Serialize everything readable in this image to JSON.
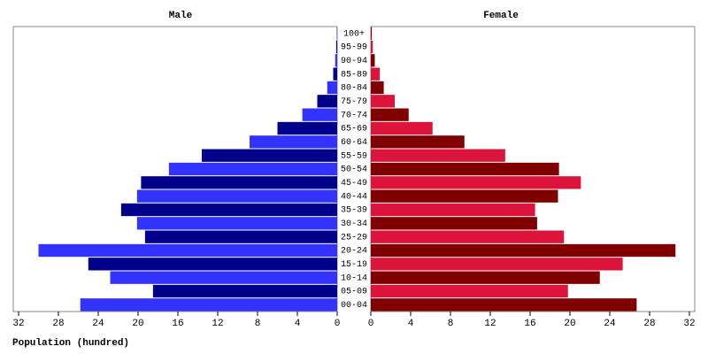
{
  "chart_data": {
    "type": "pyramid",
    "xlabel": "Population (hundred)",
    "categories": [
      "00-04",
      "05-09",
      "10-14",
      "15-19",
      "20-24",
      "25-29",
      "30-34",
      "35-39",
      "40-44",
      "45-49",
      "50-54",
      "55-59",
      "60-64",
      "65-69",
      "70-74",
      "75-79",
      "80-84",
      "85-89",
      "90-94",
      "95-99",
      "100+"
    ],
    "series": [
      {
        "name": "Male",
        "colors": [
          "#3333ff",
          "#00008b"
        ],
        "values": [
          25.8,
          18.5,
          22.8,
          25.0,
          30.0,
          19.3,
          20.1,
          21.7,
          20.1,
          19.7,
          16.9,
          13.6,
          8.8,
          6.0,
          3.5,
          2.0,
          1.0,
          0.4,
          0.2,
          0.1,
          0.05
        ]
      },
      {
        "name": "Female",
        "colors": [
          "#800000",
          "#dc143c"
        ],
        "values": [
          26.7,
          19.8,
          23.0,
          25.3,
          30.6,
          19.4,
          16.7,
          16.5,
          18.8,
          21.1,
          18.9,
          13.5,
          9.4,
          6.2,
          3.8,
          2.4,
          1.3,
          0.9,
          0.4,
          0.2,
          0.1
        ]
      }
    ],
    "xlim": [
      0,
      32
    ],
    "xticks": [
      0,
      4,
      8,
      12,
      16,
      20,
      24,
      28,
      32
    ]
  }
}
